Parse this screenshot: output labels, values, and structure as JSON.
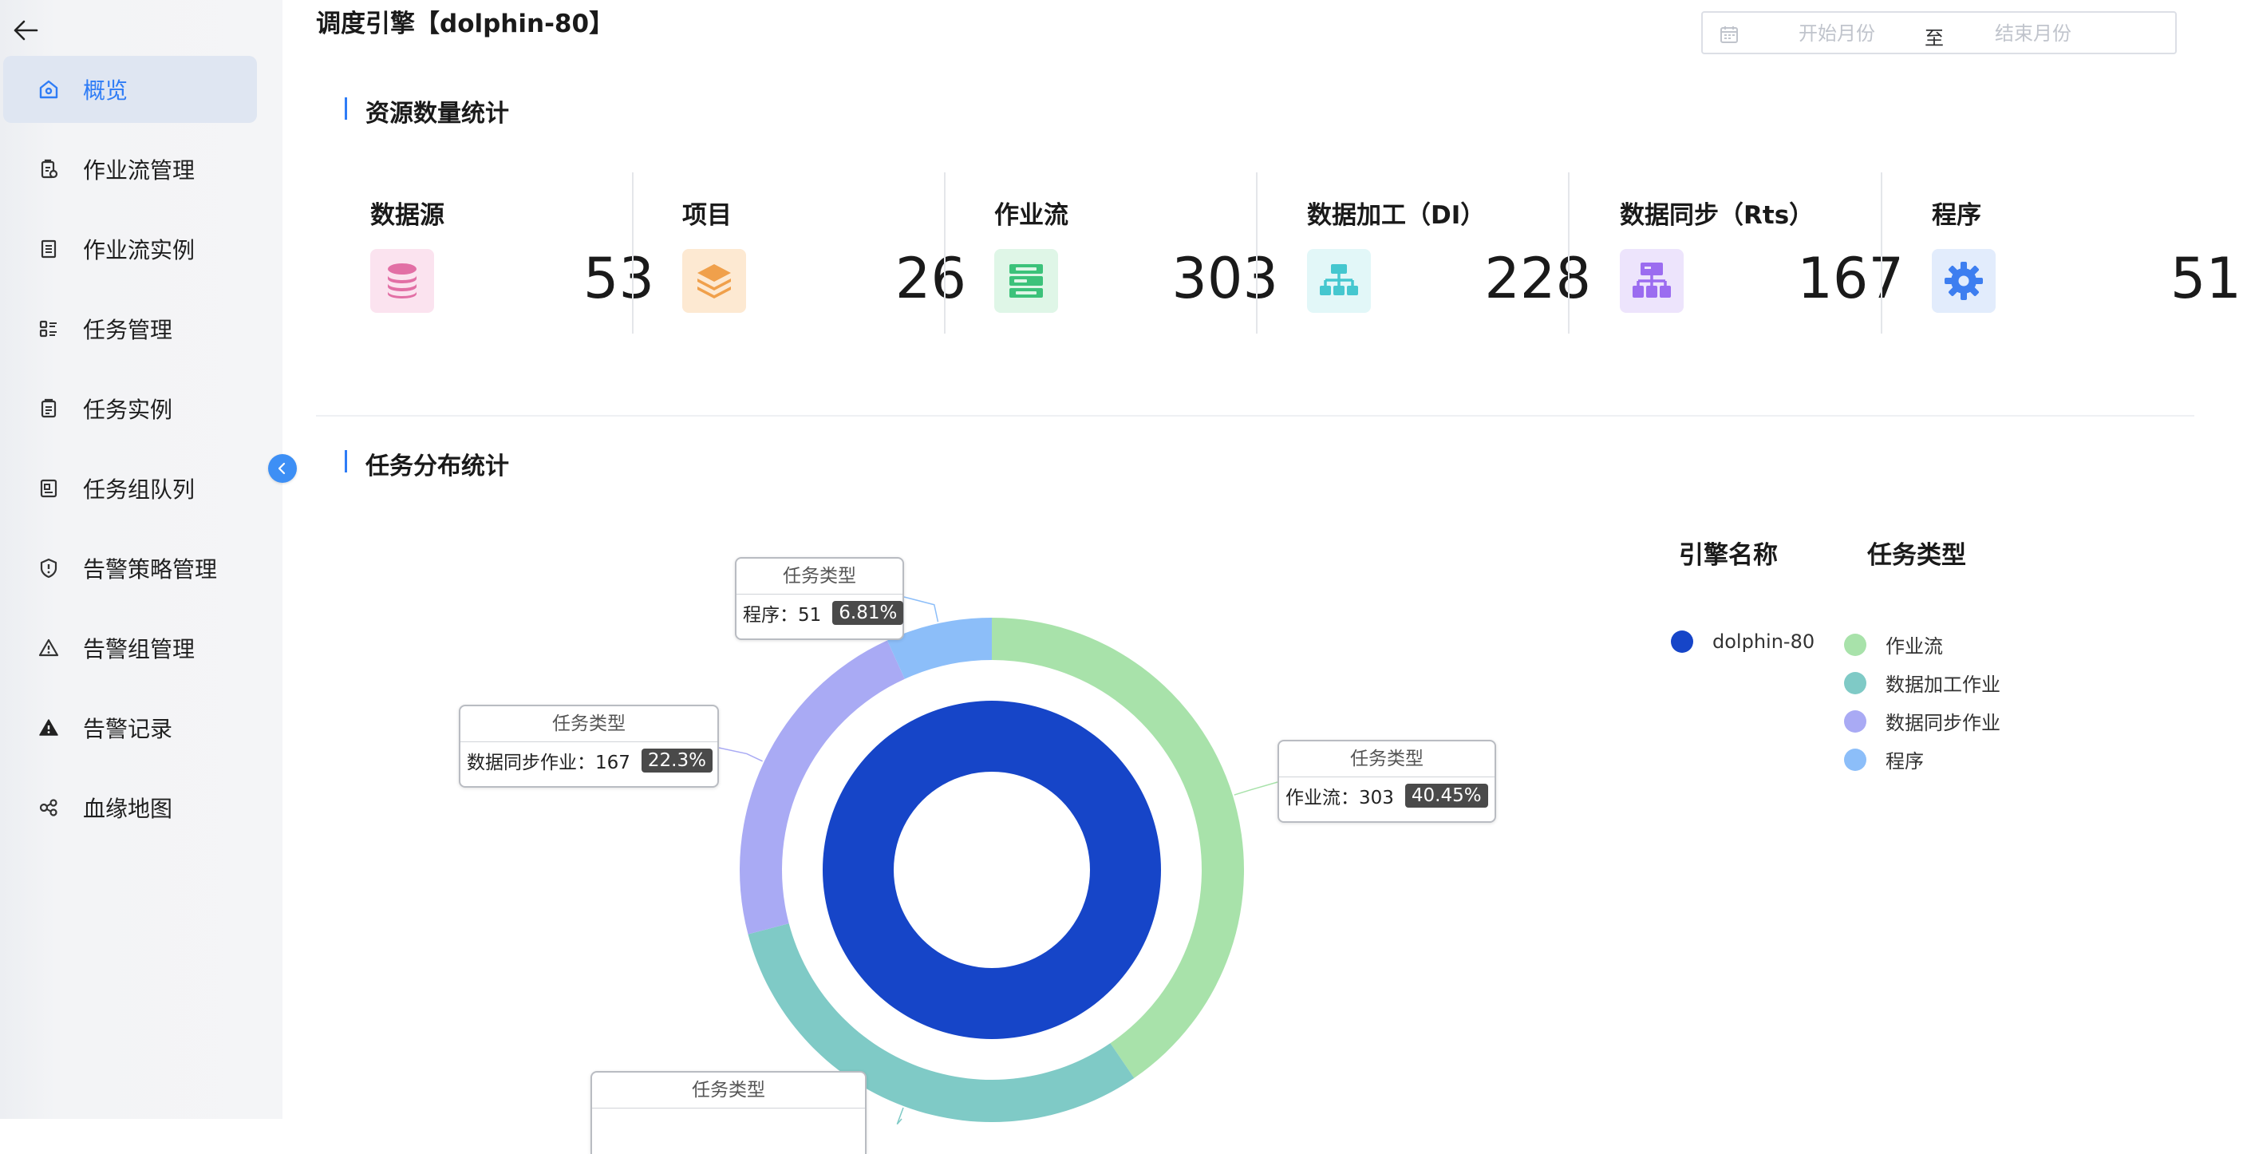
{
  "sidebar": {
    "items": [
      {
        "label": "概览",
        "icon": "home-icon",
        "active": true
      },
      {
        "label": "作业流管理",
        "icon": "clipboard-icon"
      },
      {
        "label": "作业流实例",
        "icon": "document-list-icon"
      },
      {
        "label": "任务管理",
        "icon": "grid-list-icon"
      },
      {
        "label": "任务实例",
        "icon": "clipboard-check-icon"
      },
      {
        "label": "任务组队列",
        "icon": "id-card-icon"
      },
      {
        "label": "告警策略管理",
        "icon": "shield-alert-icon"
      },
      {
        "label": "告警组管理",
        "icon": "warning-outline-icon"
      },
      {
        "label": "告警记录",
        "icon": "warning-filled-icon"
      },
      {
        "label": "血缘地图",
        "icon": "lineage-graph-icon"
      }
    ]
  },
  "header": {
    "title": "调度引擎【dolphin-80】",
    "date_range": {
      "start_placeholder": "开始月份",
      "separator": "至",
      "end_placeholder": "结束月份"
    }
  },
  "resource_section": {
    "title": "资源数量统计",
    "stats": [
      {
        "name": "数据源",
        "value": "53",
        "icon": "database-icon",
        "color": "#e26fa5",
        "bg": "#fbe3ef"
      },
      {
        "name": "项目",
        "value": "26",
        "icon": "layers-icon",
        "color": "#f0a04b",
        "bg": "#fde9d2"
      },
      {
        "name": "作业流",
        "value": "303",
        "icon": "workflow-icon",
        "color": "#3cc27a",
        "bg": "#dff6e7"
      },
      {
        "name": "数据加工（DI）",
        "value": "228",
        "icon": "hierarchy-icon",
        "color": "#45c7cf",
        "bg": "#e2f7f8"
      },
      {
        "name": "数据同步（Rts）",
        "value": "167",
        "icon": "sitemap-icon",
        "color": "#9b6cf0",
        "bg": "#ede4fc"
      },
      {
        "name": "程序",
        "value": "51",
        "icon": "gear-icon",
        "color": "#3d7ef0",
        "bg": "#e2ecfc"
      }
    ]
  },
  "task_section": {
    "title": "任务分布统计",
    "legend": {
      "engine_header": "引擎名称",
      "type_header": "任务类型",
      "engines": [
        {
          "name": "dolphin-80",
          "color": "#1645c8"
        }
      ],
      "types": [
        {
          "name": "作业流",
          "color": "#a8e2aa"
        },
        {
          "name": "数据加工作业",
          "color": "#7fcac6"
        },
        {
          "name": "数据同步作业",
          "color": "#a9aaf4"
        },
        {
          "name": "程序",
          "color": "#8cbef9"
        }
      ]
    },
    "tooltips": {
      "header": "任务类型",
      "program": {
        "label": "程序：51",
        "pct": "6.81%"
      },
      "workflow": {
        "label": "作业流：303",
        "pct": "40.45%"
      },
      "sync": {
        "label": "数据同步作业：167",
        "pct": "22.3%"
      }
    }
  },
  "chart_data": {
    "type": "pie",
    "inner_series": {
      "name": "引擎名称",
      "categories": [
        "dolphin-80"
      ],
      "values": [
        749
      ],
      "colors": [
        "#1645c8"
      ]
    },
    "outer_series": {
      "name": "任务类型",
      "categories": [
        "作业流",
        "数据加工作业",
        "数据同步作业",
        "程序"
      ],
      "values": [
        303,
        228,
        167,
        51
      ],
      "percentages": [
        40.45,
        30.44,
        22.3,
        6.81
      ],
      "colors": [
        "#a8e2aa",
        "#7fcac6",
        "#a9aaf4",
        "#8cbef9"
      ]
    }
  }
}
